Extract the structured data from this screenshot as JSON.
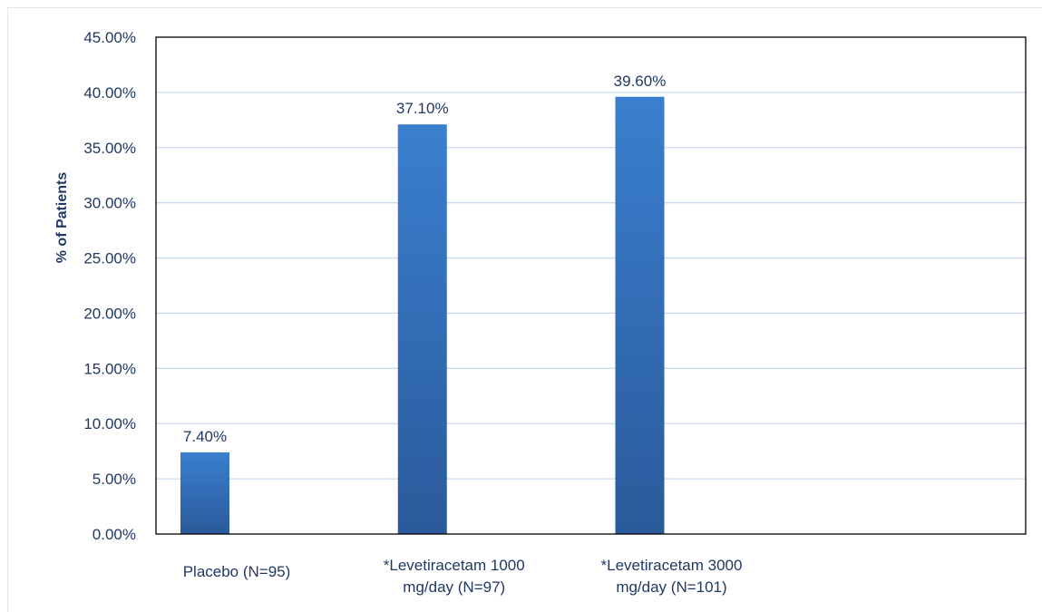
{
  "chart_data": {
    "type": "bar",
    "title": "",
    "xlabel": "",
    "ylabel": "% of Patients",
    "ylim": [
      0,
      45
    ],
    "y_tick_step": 5,
    "y_tick_labels": [
      "0.00%",
      "5.00%",
      "10.00%",
      "15.00%",
      "20.00%",
      "25.00%",
      "30.00%",
      "35.00%",
      "40.00%",
      "45.00%"
    ],
    "categories": [
      [
        "Placebo (N=95)"
      ],
      [
        "*Levetiracetam 1000",
        "mg/day (N=97)"
      ],
      [
        "*Levetiracetam 3000",
        "mg/day (N=101)"
      ]
    ],
    "values": [
      7.4,
      37.1,
      39.6
    ],
    "data_labels": [
      "7.40%",
      "37.10%",
      "39.60%"
    ],
    "grid": true,
    "legend": "none",
    "colors": {
      "bar_top": "#3a7fcf",
      "bar_bottom": "#2a5a9a",
      "grid": "#c9daf0",
      "axis": "#000000",
      "text": "#1f3864"
    }
  }
}
